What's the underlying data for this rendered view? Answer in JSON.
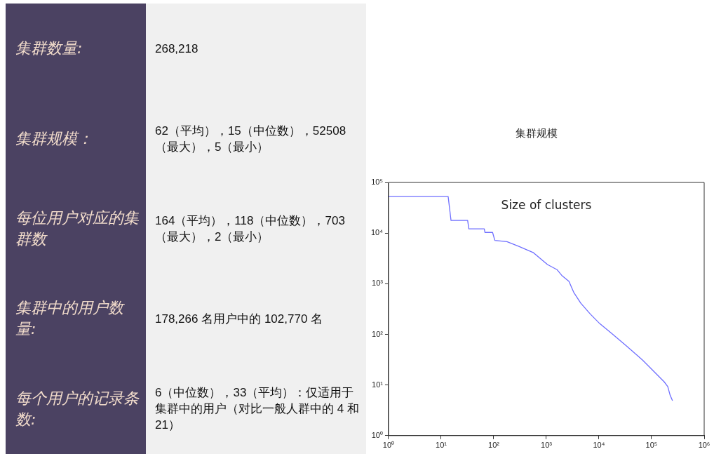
{
  "chart_data": [
    {
      "type": "other",
      "annotations": [
        "集群数量:",
        "268,218",
        "集群规模：",
        "62（平均），15（中位数），52508（最大），5（最小）",
        "每位用户对应的集群数",
        "164（平均），118（中位数），703（最大），2（最小）",
        "集群中的用户数量:",
        "178,266 名用户中的 102,770 名",
        "每个用户的记录条数:",
        "6（中位数），33（平均）：仅适用于集群中的用户（对比一般人群中的 4 和 21）"
      ]
    },
    {
      "type": "line",
      "title": "集群规模",
      "annotations": [
        "Size of clusters"
      ],
      "log": "xy",
      "grid": false,
      "legend": false,
      "marker": "none",
      "line_style": "solid",
      "xlim": [
        1,
        1000000
      ],
      "xticks": [
        {
          "value": 1,
          "label": "10⁰"
        },
        {
          "value": 10,
          "label": "10¹"
        },
        {
          "value": 100,
          "label": "10²"
        },
        {
          "value": 1000,
          "label": "10³"
        },
        {
          "value": 10000,
          "label": "10⁴"
        },
        {
          "value": 100000,
          "label": "10⁵"
        },
        {
          "value": 1000000,
          "label": "10⁶"
        }
      ],
      "ylim": [
        1,
        100000
      ],
      "yticks": [
        {
          "value": 1,
          "label": "10⁰"
        },
        {
          "value": 10,
          "label": "10¹"
        },
        {
          "value": 100,
          "label": "10²"
        },
        {
          "value": 1000,
          "label": "10³"
        },
        {
          "value": 10000,
          "label": "10⁴"
        },
        {
          "value": 100000,
          "label": "10⁵"
        }
      ],
      "series": [
        {
          "color": "#6f6fff",
          "x": [
            1,
            13.6,
            15.4,
            31.9,
            33.6,
            66,
            68,
            95,
            105,
            178,
            300,
            560,
            1050,
            1590,
            1960,
            2690,
            3310,
            4520,
            6860,
            10400,
            17500,
            32700,
            67600,
            103000,
            173000,
            203000,
            225000,
            250000
          ],
          "values": [
            52500,
            52500,
            17800,
            17800,
            12100,
            12100,
            10300,
            10300,
            7160,
            6770,
            5450,
            4130,
            2390,
            1900,
            1460,
            1110,
            676,
            411,
            251,
            162,
            104,
            60,
            31,
            20,
            11.6,
            9.3,
            6.3,
            4.9
          ]
        }
      ]
    }
  ]
}
